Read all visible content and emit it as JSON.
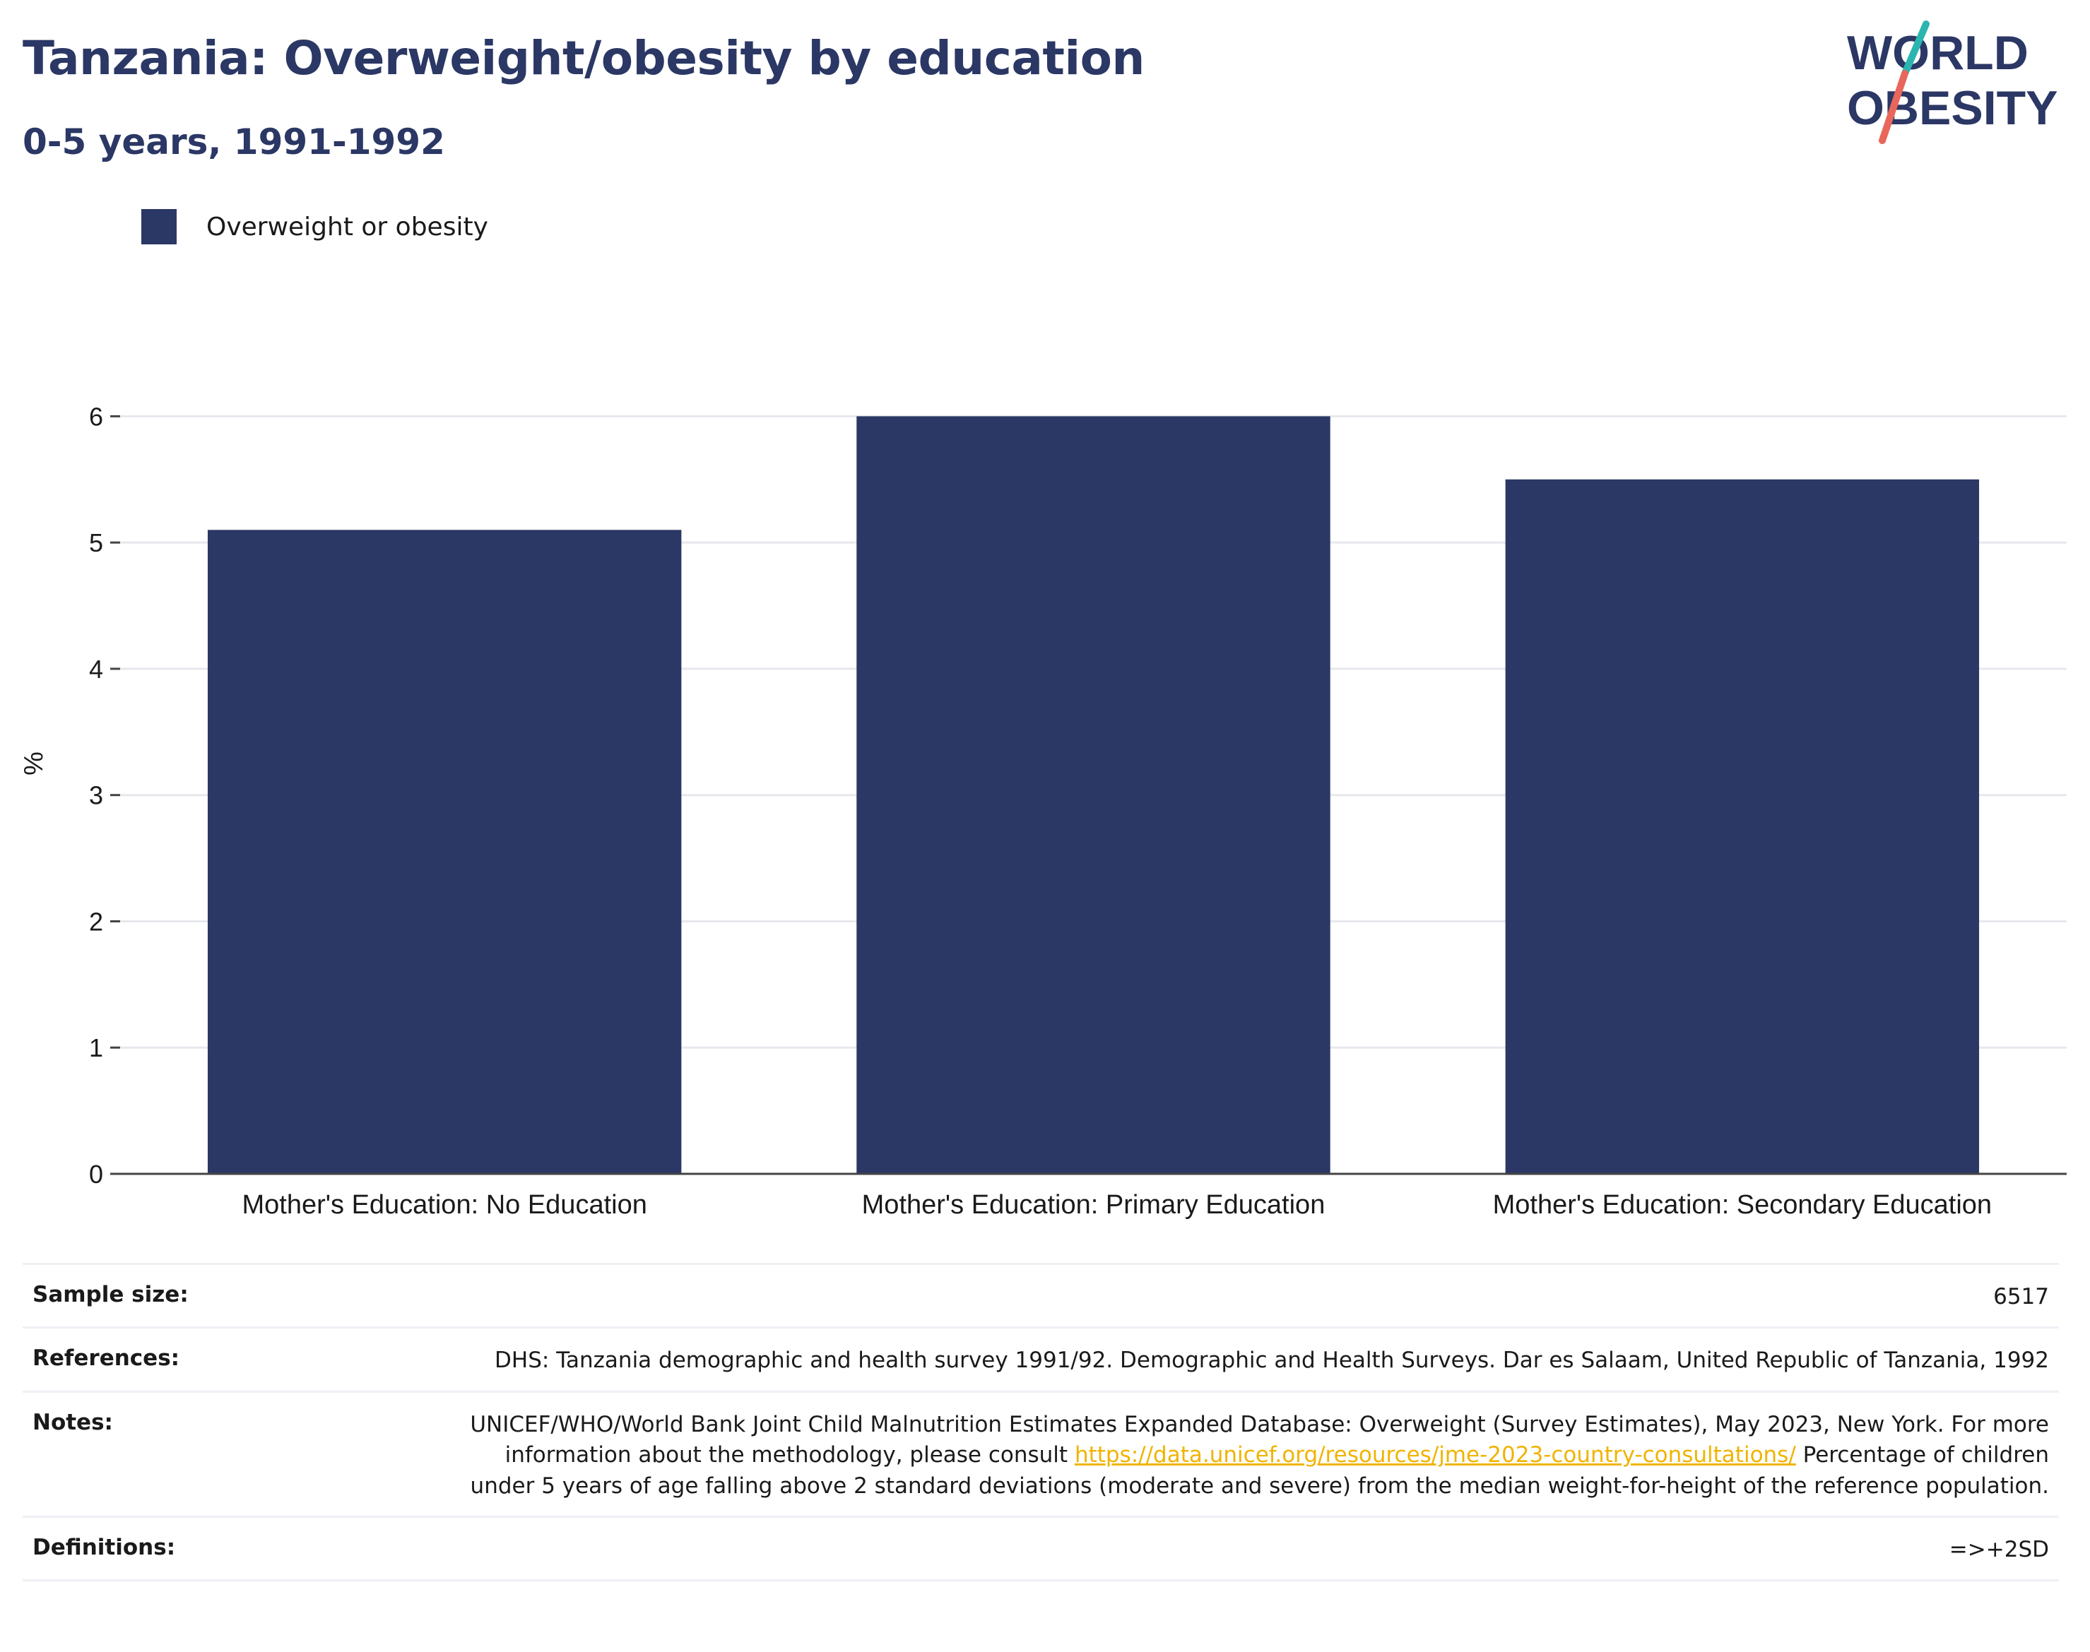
{
  "header": {
    "title": "Tanzania: Overweight/obesity by education",
    "subtitle": "0-5 years, 1991-1992"
  },
  "logo": {
    "line1": "WORLD",
    "line2": "OBESITY",
    "colors": {
      "text": "#2b3764",
      "slash_top": "#2bb5b0",
      "slash_bottom": "#e8675a"
    }
  },
  "legend": {
    "label": "Overweight or obesity",
    "color": "#2b3764"
  },
  "chart_data": {
    "type": "bar",
    "categories": [
      "Mother's Education: No Education",
      "Mother's Education: Primary Education",
      "Mother's Education: Secondary Education"
    ],
    "series": [
      {
        "name": "Overweight or obesity",
        "values": [
          5.1,
          6.0,
          5.5
        ],
        "color": "#2b3764"
      }
    ],
    "ylabel": "%",
    "xlabel": "",
    "ylim": [
      0,
      6.5
    ],
    "yticks": [
      0,
      1,
      2,
      3,
      4,
      5,
      6
    ],
    "grid": true,
    "legend_position": "top-left"
  },
  "meta": {
    "sample_size": {
      "label": "Sample size:",
      "value": "6517"
    },
    "references": {
      "label": "References:",
      "value": "DHS: Tanzania demographic and health survey 1991/92. Demographic and Health Surveys. Dar es Salaam, United Republic of Tanzania, 1992"
    },
    "notes": {
      "label": "Notes:",
      "text_before": "UNICEF/WHO/World Bank Joint Child Malnutrition Estimates Expanded Database: Overweight (Survey Estimates), May 2023, New York. For more information about the methodology, please consult ",
      "link": "https://data.unicef.org/resources/jme-2023-country-consultations/",
      "text_after": " Percentage of children under 5 years of age falling above 2 standard deviations (moderate and severe) from the median weight-for-height of the reference population."
    },
    "definitions": {
      "label": "Definitions:",
      "value": "=>+2SD"
    }
  }
}
